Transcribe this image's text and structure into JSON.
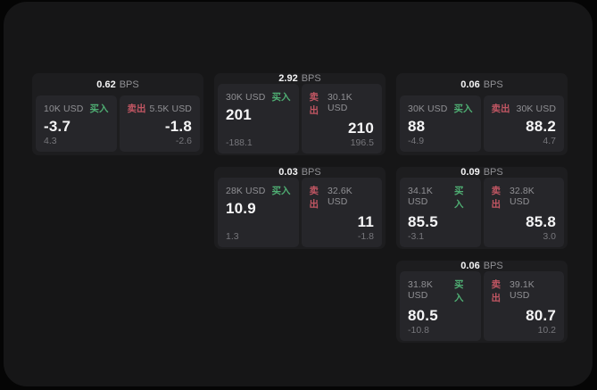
{
  "labels": {
    "bps": "BPS",
    "buy": "买入",
    "sell": "卖出"
  },
  "colors": {
    "page_bg": "#050505",
    "panel_bg": "#161617",
    "card_bg": "#1d1d1f",
    "tile_bg": "#26262a",
    "buy_green": "#4fae73",
    "sell_red": "#c15663",
    "value_white": "#f5f5f6",
    "muted_gray": "#909094"
  },
  "cards": [
    {
      "bps": "0.62",
      "col": 1,
      "row": 1,
      "buy": {
        "amount": "10K USD",
        "value": "-3.7",
        "secondary": "4.3"
      },
      "sell": {
        "amount": "5.5K USD",
        "value": "-1.8",
        "secondary": "-2.6"
      }
    },
    {
      "bps": "2.92",
      "col": 2,
      "row": 1,
      "buy": {
        "amount": "30K USD",
        "value": "201",
        "secondary": "-188.1"
      },
      "sell": {
        "amount": "30.1K USD",
        "value": "210",
        "secondary": "196.5"
      }
    },
    {
      "bps": "0.06",
      "col": 3,
      "row": 1,
      "buy": {
        "amount": "30K USD",
        "value": "88",
        "secondary": "-4.9"
      },
      "sell": {
        "amount": "30K USD",
        "value": "88.2",
        "secondary": "4.7"
      }
    },
    {
      "bps": "0.03",
      "col": 2,
      "row": 2,
      "buy": {
        "amount": "28K USD",
        "value": "10.9",
        "secondary": "1.3"
      },
      "sell": {
        "amount": "32.6K USD",
        "value": "11",
        "secondary": "-1.8"
      }
    },
    {
      "bps": "0.09",
      "col": 3,
      "row": 2,
      "buy": {
        "amount": "34.1K USD",
        "value": "85.5",
        "secondary": "-3.1"
      },
      "sell": {
        "amount": "32.8K USD",
        "value": "85.8",
        "secondary": "3.0"
      }
    },
    {
      "bps": "0.06",
      "col": 3,
      "row": 3,
      "buy": {
        "amount": "31.8K USD",
        "value": "80.5",
        "secondary": "-10.8"
      },
      "sell": {
        "amount": "39.1K USD",
        "value": "80.7",
        "secondary": "10.2"
      }
    }
  ]
}
